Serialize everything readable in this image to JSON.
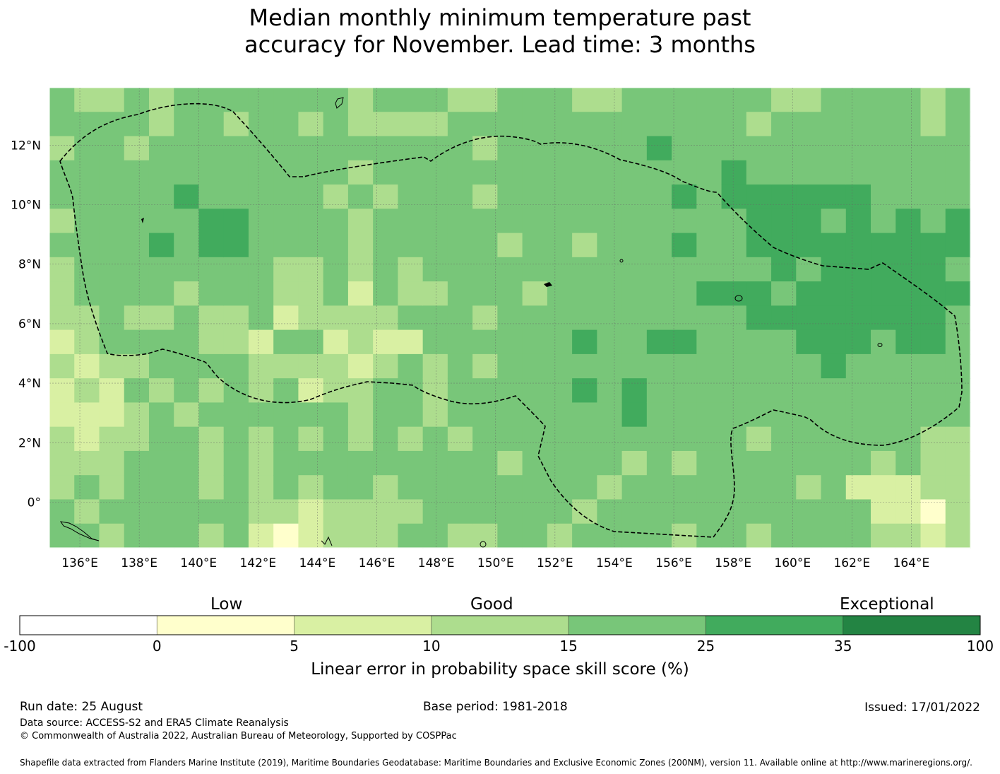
{
  "title_line1": "Median monthly minimum temperature past",
  "title_line2": "accuracy for November. Lead time: 3 months",
  "map": {
    "lon_range": [
      135,
      166
    ],
    "lat_range": [
      -1.5,
      14
    ],
    "lon_ticks": [
      "136°E",
      "138°E",
      "140°E",
      "142°E",
      "144°E",
      "146°E",
      "148°E",
      "150°E",
      "152°E",
      "154°E",
      "156°E",
      "158°E",
      "160°E",
      "162°E",
      "164°E"
    ],
    "lat_ticks": [
      "12°N",
      "10°N",
      "8°N",
      "6°N",
      "4°N",
      "2°N",
      "0°"
    ],
    "gridlines": true
  },
  "colorbar": {
    "category_labels": [
      "Low",
      "Good",
      "Exceptional"
    ],
    "tick_labels": [
      "-100",
      "0",
      "5",
      "10",
      "15",
      "25",
      "35",
      "100"
    ],
    "colors": [
      "#ffffff",
      "#ffffcc",
      "#d9f0a3",
      "#addd8e",
      "#78c679",
      "#41ab5d",
      "#238443"
    ],
    "xlabel": "Linear error in probability space skill score (%)"
  },
  "footer": {
    "run_date": "Run date: 25 August",
    "base_period": "Base period: 1981-2018",
    "issued": "Issued: 17/01/2022",
    "data_source": "Data source: ACCESS-S2 and ERA5 Climate Reanalysis",
    "copyright": "© Commonwealth of Australia 2022, Australian Bureau of Meteorology, Supported by COSPPac",
    "shapefile": "Shapefile data extracted from Flanders Marine Institute (2019), Maritime Boundaries Geodatabase: Maritime Boundaries and Exclusive Economic Zones (200NM), version 11. Available online at http://www.marineregions.org/."
  }
}
